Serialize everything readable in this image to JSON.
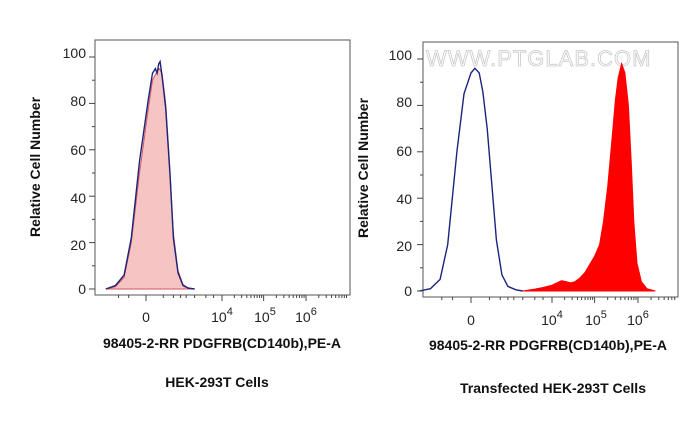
{
  "watermark": "WWW.PTGLAB.COM",
  "chart_data": [
    {
      "type": "histogram",
      "title": "HEK-293T Cells",
      "xlabel": "98405-2-RR PDGFRB(CD140b),PE-A",
      "ylabel": "Relative Cell Number",
      "x_scale": "biexponential",
      "x_ticks": [
        {
          "label": "0",
          "value": 0
        },
        {
          "label": "10",
          "sup": "4",
          "value": 10000
        },
        {
          "label": "10",
          "sup": "5",
          "value": 100000
        },
        {
          "label": "10",
          "sup": "6",
          "value": 1000000
        }
      ],
      "y_ticks": [
        "0",
        "20",
        "40",
        "60",
        "80",
        "100"
      ],
      "ylim": [
        0,
        100
      ],
      "series": [
        {
          "style": "filled",
          "color": "#f7c4c4",
          "edge_color": "#d9535e",
          "points": [
            [
              -2000,
              0
            ],
            [
              -1200,
              1
            ],
            [
              -700,
              5
            ],
            [
              -400,
              20
            ],
            [
              -150,
              50
            ],
            [
              50,
              78
            ],
            [
              150,
              90
            ],
            [
              250,
              93
            ],
            [
              350,
              95
            ],
            [
              450,
              93
            ],
            [
              600,
              80
            ],
            [
              800,
              52
            ],
            [
              1000,
              24
            ],
            [
              1300,
              8
            ],
            [
              1700,
              2
            ],
            [
              2200,
              0.5
            ],
            [
              3000,
              0
            ]
          ]
        },
        {
          "style": "line",
          "color": "#1a237e",
          "points": [
            [
              -2000,
              0
            ],
            [
              -1200,
              1.5
            ],
            [
              -700,
              6
            ],
            [
              -400,
              22
            ],
            [
              -150,
              55
            ],
            [
              50,
              82
            ],
            [
              150,
              93
            ],
            [
              230,
              95
            ],
            [
              280,
              93
            ],
            [
              330,
              97
            ],
            [
              380,
              98
            ],
            [
              450,
              92
            ],
            [
              600,
              78
            ],
            [
              800,
              50
            ],
            [
              1000,
              22
            ],
            [
              1300,
              7
            ],
            [
              1700,
              1.5
            ],
            [
              2200,
              0.4
            ],
            [
              3000,
              0
            ]
          ]
        }
      ]
    },
    {
      "type": "histogram",
      "title": "Transfected HEK-293T Cells",
      "xlabel": "98405-2-RR PDGFRB(CD140b),PE-A",
      "ylabel": "Relative Cell Number",
      "x_scale": "biexponential",
      "x_ticks": [
        {
          "label": "0",
          "value": 0
        },
        {
          "label": "10",
          "sup": "4",
          "value": 10000
        },
        {
          "label": "10",
          "sup": "5",
          "value": 100000
        },
        {
          "label": "10",
          "sup": "6",
          "value": 1000000
        }
      ],
      "y_ticks": [
        "0",
        "20",
        "40",
        "60",
        "80",
        "100"
      ],
      "ylim": [
        0,
        100
      ],
      "series": [
        {
          "style": "line",
          "color": "#1a237e",
          "points": [
            [
              -3000,
              0
            ],
            [
              -1800,
              1
            ],
            [
              -1100,
              5
            ],
            [
              -700,
              20
            ],
            [
              -350,
              60
            ],
            [
              -150,
              85
            ],
            [
              0,
              94
            ],
            [
              80,
              96
            ],
            [
              180,
              94
            ],
            [
              280,
              86
            ],
            [
              420,
              70
            ],
            [
              600,
              45
            ],
            [
              800,
              22
            ],
            [
              1100,
              7
            ],
            [
              1500,
              2
            ],
            [
              2200,
              0.5
            ],
            [
              3000,
              0
            ]
          ]
        },
        {
          "style": "filled",
          "color": "#ff0000",
          "edge_color": "#ff0000",
          "points": [
            [
              3000,
              0
            ],
            [
              5000,
              0.8
            ],
            [
              7000,
              1.5
            ],
            [
              10000,
              2.5
            ],
            [
              13000,
              3.5
            ],
            [
              17000,
              4.5
            ],
            [
              22000,
              4
            ],
            [
              28000,
              3.5
            ],
            [
              35000,
              4
            ],
            [
              45000,
              5.5
            ],
            [
              60000,
              8
            ],
            [
              80000,
              12
            ],
            [
              100000,
              15
            ],
            [
              130000,
              20
            ],
            [
              160000,
              30
            ],
            [
              200000,
              45
            ],
            [
              250000,
              65
            ],
            [
              300000,
              82
            ],
            [
              350000,
              92
            ],
            [
              420000,
              98
            ],
            [
              500000,
              94
            ],
            [
              600000,
              80
            ],
            [
              700000,
              55
            ],
            [
              800000,
              30
            ],
            [
              950000,
              12
            ],
            [
              1200000,
              4
            ],
            [
              1600000,
              1
            ],
            [
              2500000,
              0
            ]
          ]
        }
      ]
    }
  ]
}
